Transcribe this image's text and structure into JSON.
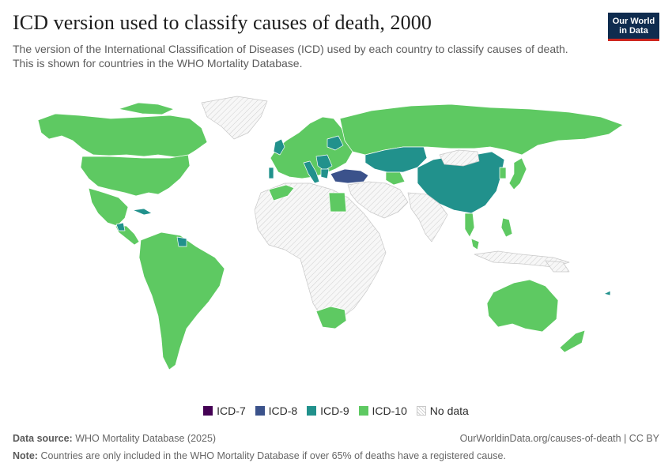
{
  "header": {
    "title": "ICD version used to classify causes of death, 2000",
    "subtitle": "The version of the International Classification of Diseases (ICD) used by each country to classify causes of death. This is shown for countries in the WHO Mortality Database."
  },
  "logo": {
    "line1": "Our World",
    "line2": "in Data"
  },
  "legend": [
    {
      "label": "ICD-7",
      "color": "#440154"
    },
    {
      "label": "ICD-8",
      "color": "#3b528b"
    },
    {
      "label": "ICD-9",
      "color": "#21918c"
    },
    {
      "label": "ICD-10",
      "color": "#5ec962"
    },
    {
      "label": "No data",
      "color": "hatched"
    }
  ],
  "colors": {
    "icd7": "#440154",
    "icd8": "#3b528b",
    "icd9": "#21918c",
    "icd10": "#5ec962",
    "no_data": "#f2f2f2"
  },
  "footer": {
    "source_label": "Data source:",
    "source_text": "WHO Mortality Database (2025)",
    "url": "OurWorldinData.org/causes-of-death | CC BY",
    "note_label": "Note:",
    "note_text": "Countries are only included in the WHO Mortality Database if over 65% of deaths have a registered cause."
  }
}
